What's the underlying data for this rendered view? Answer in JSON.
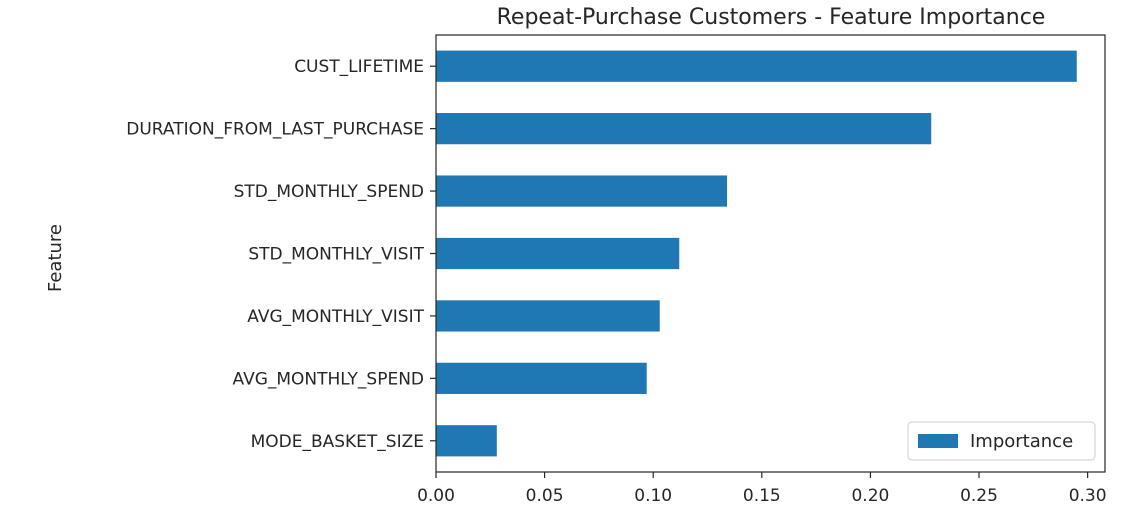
{
  "chart_data": {
    "type": "bar",
    "orientation": "horizontal",
    "title": "Repeat-Purchase Customers - Feature Importance",
    "ylabel": "Feature",
    "xlabel": "",
    "categories": [
      "CUST_LIFETIME",
      "DURATION_FROM_LAST_PURCHASE",
      "STD_MONTHLY_SPEND",
      "STD_MONTHLY_VISIT",
      "AVG_MONTHLY_VISIT",
      "AVG_MONTHLY_SPEND",
      "MODE_BASKET_SIZE"
    ],
    "series": [
      {
        "name": "Importance",
        "values": [
          0.295,
          0.228,
          0.134,
          0.112,
          0.103,
          0.097,
          0.028
        ]
      }
    ],
    "xlim": [
      0.0,
      0.308
    ],
    "xticks": [
      "0.00",
      "0.05",
      "0.10",
      "0.15",
      "0.20",
      "0.25",
      "0.30"
    ],
    "xtick_values": [
      0.0,
      0.05,
      0.1,
      0.15,
      0.2,
      0.25,
      0.3
    ],
    "grid": false,
    "legend_position": "lower-right",
    "colors": {
      "bar": "#1f77b4",
      "axis": "#262626",
      "text": "#262626"
    }
  }
}
